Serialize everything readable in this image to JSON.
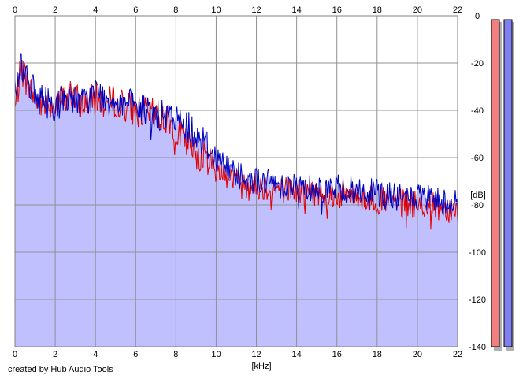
{
  "chart_data": {
    "type": "area",
    "xlabel": "[kHz]",
    "ylabel": "[dB]",
    "xlim": [
      0,
      22
    ],
    "ylim": [
      -140,
      0
    ],
    "x_ticks": [
      0,
      2,
      4,
      6,
      8,
      10,
      12,
      14,
      16,
      18,
      20,
      22
    ],
    "y_ticks": [
      0,
      -20,
      -40,
      -60,
      -80,
      -100,
      -120,
      -140
    ],
    "x_tick_labels": [
      "0",
      "2",
      "4",
      "6",
      "8",
      "10",
      "12",
      "14",
      "16",
      "18",
      "20",
      "22"
    ],
    "y_tick_labels": [
      "0",
      "-20",
      "-40",
      "-60",
      "-80",
      "-100",
      "-120",
      "-140"
    ],
    "grid": true,
    "series": [
      {
        "color": "#e00000",
        "x": [
          0,
          0.3,
          0.6,
          1,
          1.5,
          2,
          2.5,
          2.8,
          3,
          3.5,
          4,
          4.5,
          5,
          5.5,
          6,
          6.5,
          7,
          7.5,
          8,
          8.5,
          9,
          9.5,
          10,
          10.5,
          11,
          11.5,
          12,
          13,
          14,
          15,
          16,
          17,
          18,
          19,
          20,
          21,
          22
        ],
        "values": [
          -40,
          -22,
          -28,
          -35,
          -38,
          -36,
          -36,
          -33,
          -36,
          -37,
          -35,
          -37,
          -36,
          -38,
          -40,
          -41,
          -42,
          -44,
          -48,
          -54,
          -58,
          -60,
          -64,
          -67,
          -69,
          -71,
          -72,
          -73,
          -74,
          -75,
          -76,
          -76,
          -78,
          -79,
          -80,
          -81,
          -82
        ]
      },
      {
        "color": "#0000c0",
        "x": [
          0,
          0.3,
          0.6,
          1,
          1.5,
          2,
          2.5,
          2.8,
          3,
          3.5,
          4,
          4.5,
          5,
          5.5,
          6,
          6.5,
          7,
          7.5,
          8,
          8.5,
          9,
          9.5,
          10,
          10.5,
          11,
          11.5,
          12,
          13,
          14,
          15,
          16,
          17,
          18,
          19,
          20,
          21,
          22
        ],
        "values": [
          -32,
          -20,
          -25,
          -34,
          -36,
          -38,
          -35,
          -33,
          -36,
          -37,
          -32,
          -36,
          -35,
          -37,
          -39,
          -40,
          -42,
          -43,
          -44,
          -46,
          -50,
          -54,
          -60,
          -64,
          -66,
          -68,
          -70,
          -71,
          -72,
          -73,
          -73,
          -74,
          -75,
          -77,
          -77,
          -78,
          -79
        ]
      }
    ],
    "fill_color": "#c0c0ff",
    "meters": [
      {
        "channel": "left",
        "color": "#f08080"
      },
      {
        "channel": "right",
        "color": "#8080f0"
      }
    ]
  },
  "footer": {
    "credit": "created by Hub Audio Tools"
  }
}
